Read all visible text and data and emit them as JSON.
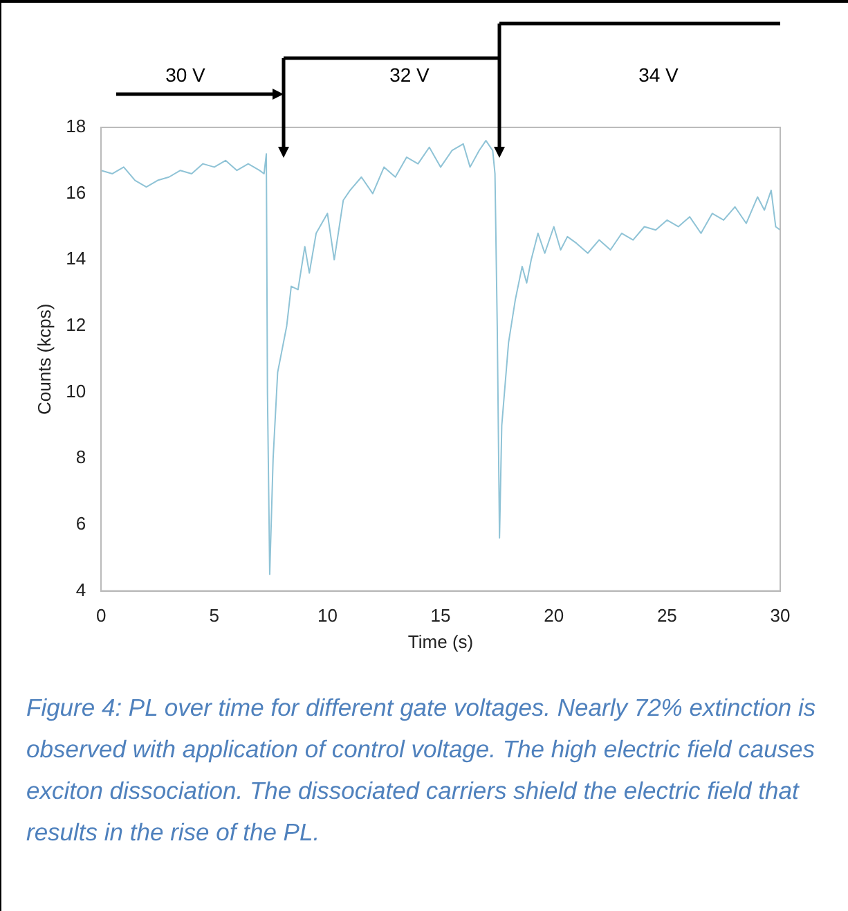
{
  "chart_data": {
    "type": "line",
    "xlabel": "Time (s)",
    "ylabel": "Counts (kcps)",
    "marker": "none",
    "x": [
      0,
      0.5,
      1,
      1.5,
      2,
      2.5,
      3,
      3.5,
      4,
      4.5,
      5,
      5.5,
      6,
      6.5,
      7,
      7.2,
      7.3,
      7.35,
      7.45,
      7.6,
      7.8,
      8.2,
      8.4,
      8.7,
      9,
      9.2,
      9.5,
      10,
      10.3,
      10.7,
      11,
      11.5,
      12,
      12.5,
      13,
      13.5,
      14,
      14.5,
      15,
      15.5,
      16,
      16.3,
      16.7,
      17,
      17.3,
      17.4,
      17.5,
      17.6,
      17.7,
      18,
      18.3,
      18.6,
      18.8,
      19,
      19.3,
      19.6,
      20,
      20.3,
      20.6,
      21,
      21.5,
      22,
      22.5,
      23,
      23.5,
      24,
      24.5,
      25,
      25.5,
      26,
      26.5,
      27,
      27.5,
      28,
      28.5,
      29,
      29.3,
      29.6,
      29.8,
      30
    ],
    "series": [
      {
        "color": "#8fc3d6",
        "values": [
          16.7,
          16.6,
          16.8,
          16.4,
          16.2,
          16.4,
          16.5,
          16.7,
          16.6,
          16.9,
          16.8,
          17.0,
          16.7,
          16.9,
          16.7,
          16.6,
          17.2,
          10,
          4.5,
          8,
          10.6,
          12.0,
          13.2,
          13.1,
          14.4,
          13.6,
          14.8,
          15.4,
          14.0,
          15.8,
          16.1,
          16.5,
          16.0,
          16.8,
          16.5,
          17.1,
          16.9,
          17.4,
          16.8,
          17.3,
          17.5,
          16.8,
          17.3,
          17.6,
          17.3,
          16.6,
          12,
          5.6,
          9,
          11.5,
          12.8,
          13.8,
          13.3,
          14.0,
          14.8,
          14.2,
          15.0,
          14.3,
          14.7,
          14.5,
          14.2,
          14.6,
          14.3,
          14.8,
          14.6,
          15.0,
          14.9,
          15.2,
          15.0,
          15.3,
          14.8,
          15.4,
          15.2,
          15.6,
          15.1,
          15.9,
          15.5,
          16.1,
          15.0,
          14.9
        ]
      }
    ],
    "xlim": [
      0,
      30
    ],
    "ylim": [
      4,
      18
    ],
    "xticks": [
      0,
      5,
      10,
      15,
      20,
      25,
      30
    ],
    "yticks": [
      4,
      6,
      8,
      10,
      12,
      14,
      16,
      18
    ],
    "annotations": [
      "30 V",
      "32 V",
      "34 V",
      "Figure 4: PL over time for different gate voltages. Nearly 72% extinction is observed with application of control voltage. The high electric field causes exciton dissociation. The dissociated carriers shield the electric field that results in the rise of the PL."
    ]
  }
}
